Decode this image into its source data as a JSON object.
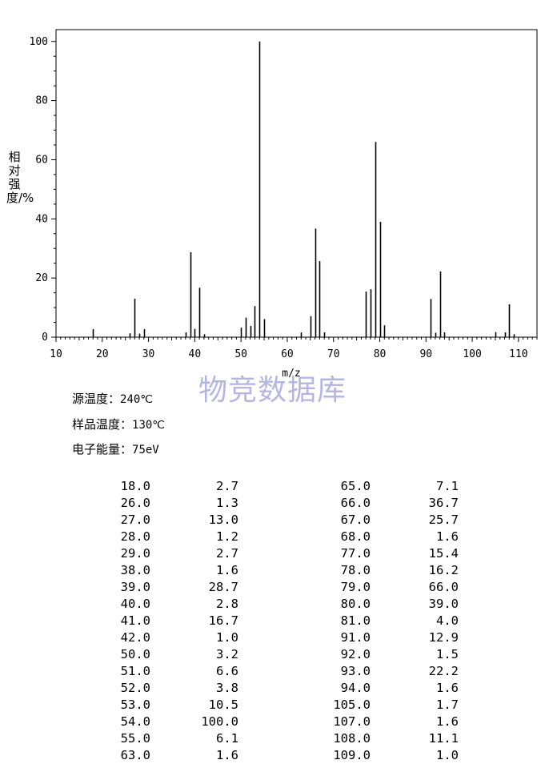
{
  "chart_data": {
    "type": "bar",
    "xlabel": "m/z",
    "ylabel": "相对强度/%",
    "xlim": [
      10,
      114
    ],
    "ylim": [
      0,
      104
    ],
    "xticks": [
      10,
      20,
      30,
      40,
      50,
      60,
      70,
      80,
      90,
      100,
      110
    ],
    "yticks": [
      0,
      20,
      40,
      60,
      80,
      100
    ],
    "peaks": [
      {
        "mz": 18.0,
        "intensity": 2.7
      },
      {
        "mz": 26.0,
        "intensity": 1.3
      },
      {
        "mz": 27.0,
        "intensity": 13.0
      },
      {
        "mz": 28.0,
        "intensity": 1.2
      },
      {
        "mz": 29.0,
        "intensity": 2.7
      },
      {
        "mz": 38.0,
        "intensity": 1.6
      },
      {
        "mz": 39.0,
        "intensity": 28.7
      },
      {
        "mz": 40.0,
        "intensity": 2.8
      },
      {
        "mz": 41.0,
        "intensity": 16.7
      },
      {
        "mz": 42.0,
        "intensity": 1.0
      },
      {
        "mz": 50.0,
        "intensity": 3.2
      },
      {
        "mz": 51.0,
        "intensity": 6.6
      },
      {
        "mz": 52.0,
        "intensity": 3.8
      },
      {
        "mz": 53.0,
        "intensity": 10.5
      },
      {
        "mz": 54.0,
        "intensity": 100.0
      },
      {
        "mz": 55.0,
        "intensity": 6.1
      },
      {
        "mz": 63.0,
        "intensity": 1.6
      },
      {
        "mz": 65.0,
        "intensity": 7.1
      },
      {
        "mz": 66.0,
        "intensity": 36.7
      },
      {
        "mz": 67.0,
        "intensity": 25.7
      },
      {
        "mz": 68.0,
        "intensity": 1.6
      },
      {
        "mz": 77.0,
        "intensity": 15.4
      },
      {
        "mz": 78.0,
        "intensity": 16.2
      },
      {
        "mz": 79.0,
        "intensity": 66.0
      },
      {
        "mz": 80.0,
        "intensity": 39.0
      },
      {
        "mz": 81.0,
        "intensity": 4.0
      },
      {
        "mz": 91.0,
        "intensity": 12.9
      },
      {
        "mz": 92.0,
        "intensity": 1.5
      },
      {
        "mz": 93.0,
        "intensity": 22.2
      },
      {
        "mz": 94.0,
        "intensity": 1.6
      },
      {
        "mz": 105.0,
        "intensity": 1.7
      },
      {
        "mz": 107.0,
        "intensity": 1.6
      },
      {
        "mz": 108.0,
        "intensity": 11.1
      },
      {
        "mz": 109.0,
        "intensity": 1.0
      }
    ],
    "grid": false,
    "legend": "none"
  },
  "watermark": "物竞数据库",
  "conditions": [
    {
      "label": "源温度：",
      "value": "240℃"
    },
    {
      "label": "样品温度：",
      "value": "130℃"
    },
    {
      "label": "电子能量：",
      "value": "75eV"
    }
  ],
  "table_rows": [
    [
      "18.0",
      "2.7",
      "65.0",
      "7.1"
    ],
    [
      "26.0",
      "1.3",
      "66.0",
      "36.7"
    ],
    [
      "27.0",
      "13.0",
      "67.0",
      "25.7"
    ],
    [
      "28.0",
      "1.2",
      "68.0",
      "1.6"
    ],
    [
      "29.0",
      "2.7",
      "77.0",
      "15.4"
    ],
    [
      "38.0",
      "1.6",
      "78.0",
      "16.2"
    ],
    [
      "39.0",
      "28.7",
      "79.0",
      "66.0"
    ],
    [
      "40.0",
      "2.8",
      "80.0",
      "39.0"
    ],
    [
      "41.0",
      "16.7",
      "81.0",
      "4.0"
    ],
    [
      "42.0",
      "1.0",
      "91.0",
      "12.9"
    ],
    [
      "50.0",
      "3.2",
      "92.0",
      "1.5"
    ],
    [
      "51.0",
      "6.6",
      "93.0",
      "22.2"
    ],
    [
      "52.0",
      "3.8",
      "94.0",
      "1.6"
    ],
    [
      "53.0",
      "10.5",
      "105.0",
      "1.7"
    ],
    [
      "54.0",
      "100.0",
      "107.0",
      "1.6"
    ],
    [
      "55.0",
      "6.1",
      "108.0",
      "11.1"
    ],
    [
      "63.0",
      "1.6",
      "109.0",
      "1.0"
    ]
  ]
}
